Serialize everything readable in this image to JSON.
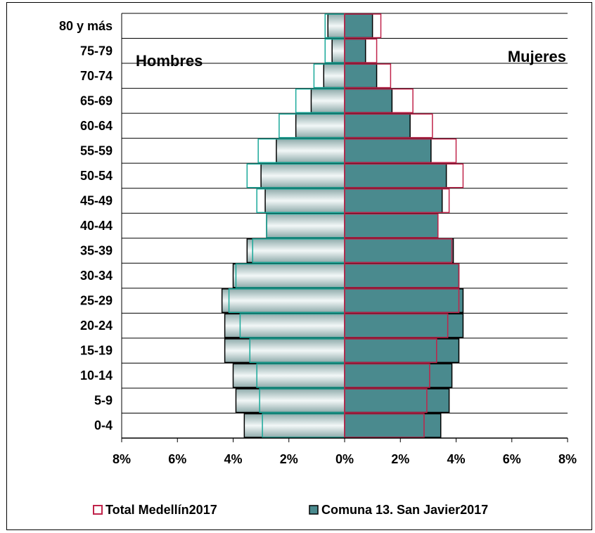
{
  "chart_data": {
    "type": "bar",
    "subtype": "population-pyramid",
    "categories": [
      "0-4",
      "5-9",
      "10-14",
      "15-19",
      "20-24",
      "25-29",
      "30-34",
      "35-39",
      "40-44",
      "45-49",
      "50-54",
      "55-59",
      "60-64",
      "65-69",
      "70-74",
      "75-79",
      "80 y más"
    ],
    "series": [
      {
        "name": "Comuna 13. San Javier2017",
        "style": "filled",
        "hombres": [
          3.6,
          3.9,
          4.0,
          4.3,
          4.3,
          4.4,
          4.0,
          3.5,
          2.8,
          2.85,
          3.0,
          2.45,
          1.75,
          1.2,
          0.75,
          0.45,
          0.6
        ],
        "mujeres": [
          3.45,
          3.75,
          3.85,
          4.1,
          4.25,
          4.25,
          4.1,
          3.9,
          3.35,
          3.5,
          3.65,
          3.1,
          2.35,
          1.7,
          1.15,
          0.75,
          1.0
        ]
      },
      {
        "name": "Total Medellín2017",
        "style": "outline",
        "hombres": [
          2.95,
          3.05,
          3.15,
          3.4,
          3.75,
          4.15,
          3.9,
          3.3,
          2.8,
          3.15,
          3.5,
          3.1,
          2.35,
          1.75,
          1.1,
          0.7,
          0.7
        ],
        "mujeres": [
          2.85,
          2.95,
          3.05,
          3.3,
          3.7,
          4.1,
          4.1,
          3.85,
          3.35,
          3.75,
          4.25,
          4.0,
          3.15,
          2.45,
          1.65,
          1.15,
          1.3
        ]
      }
    ],
    "x_ticks": [
      "8%",
      "6%",
      "4%",
      "2%",
      "0%",
      "2%",
      "4%",
      "6%",
      "8%"
    ],
    "xlim": [
      -8,
      8
    ],
    "label_left": "Hombres",
    "label_right": "Mujeres",
    "grid": "horizontal",
    "legend_position": "bottom",
    "colors": {
      "comuna_fill": "#4a8a8e",
      "comuna_stroke": "#000000",
      "hombres_fill_dark": "#9db6b6",
      "hombres_fill_light": "#f2f7f7",
      "total_hombres_outline": "#1aa99a",
      "total_mujeres_outline": "#c0234a",
      "axis": "#c0234a",
      "grid": "#000000"
    }
  }
}
